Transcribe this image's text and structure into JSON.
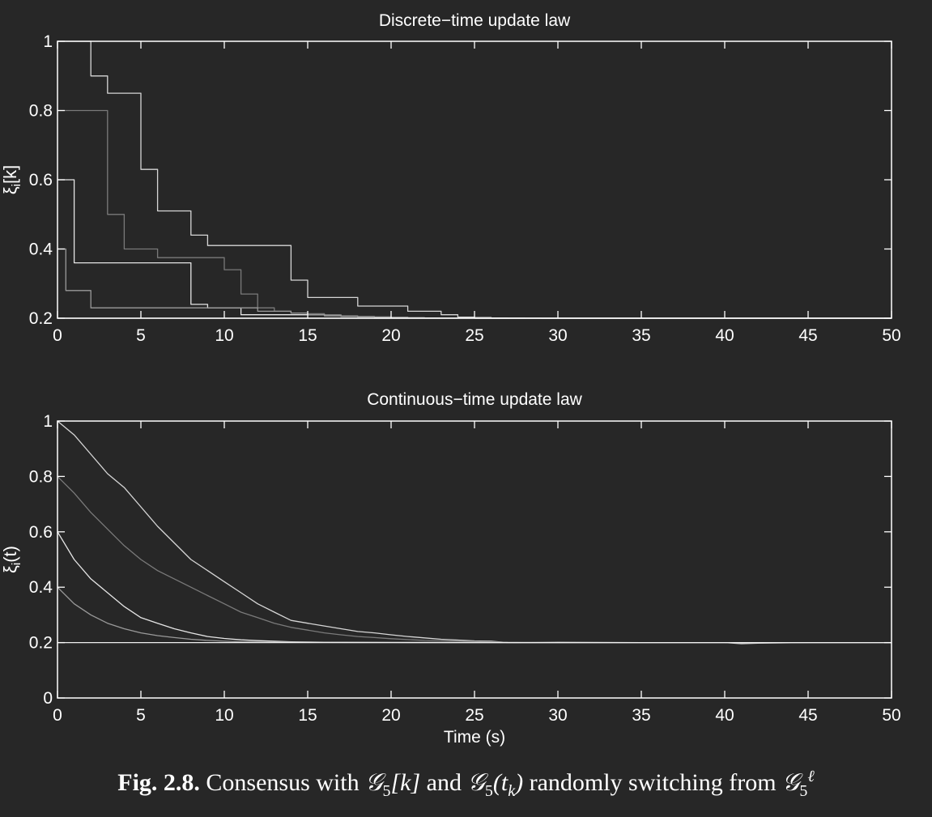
{
  "caption": {
    "label": "Fig. 2.8.",
    "text_1": " Consensus with ",
    "g": "𝒢",
    "sub5": "5",
    "k_bracket": "[k]",
    "text_and": " and ",
    "tk_paren": "(t",
    "tk_sub": "k",
    "tk_close": ")",
    "text_2": " randomly switching from ",
    "sup_ell": "ℓ"
  },
  "chart_data": [
    {
      "type": "line",
      "title": "Discrete−time update law",
      "xlabel": "",
      "ylabel": "ξi[k]",
      "xlim": [
        0,
        50
      ],
      "ylim": [
        0.2,
        1
      ],
      "xticks": [
        0,
        5,
        10,
        15,
        20,
        25,
        30,
        35,
        40,
        45,
        50
      ],
      "yticks": [
        0.2,
        0.4,
        0.6,
        0.8,
        1
      ],
      "ytick_labels": [
        "0.2",
        "0.4",
        "0.6",
        "0.8",
        "1"
      ],
      "grid": false,
      "step": true,
      "series": [
        {
          "color": "#d6d6d6",
          "x": [
            0,
            1,
            2,
            3,
            4,
            5,
            6,
            7,
            8,
            9,
            10,
            11,
            12,
            13,
            14,
            15,
            16,
            17,
            18,
            19,
            20,
            21,
            22,
            23,
            24,
            25,
            26,
            27,
            28,
            29,
            30,
            50
          ],
          "y": [
            1.0,
            1.0,
            0.9,
            0.85,
            0.85,
            0.63,
            0.51,
            0.51,
            0.44,
            0.41,
            0.41,
            0.41,
            0.41,
            0.41,
            0.31,
            0.26,
            0.26,
            0.26,
            0.235,
            0.235,
            0.235,
            0.22,
            0.22,
            0.21,
            0.203,
            0.202,
            0.201,
            0.2005,
            0.2002,
            0.2001,
            0.2,
            0.2
          ]
        },
        {
          "color": "#7a7a7a",
          "x": [
            0,
            1,
            2,
            3,
            4,
            5,
            6,
            7,
            8,
            9,
            10,
            11,
            12,
            13,
            14,
            15,
            16,
            17,
            18,
            19,
            20,
            21,
            22,
            23,
            24,
            25,
            26,
            50
          ],
          "y": [
            0.8,
            0.8,
            0.8,
            0.5,
            0.4,
            0.4,
            0.375,
            0.375,
            0.375,
            0.375,
            0.34,
            0.27,
            0.23,
            0.22,
            0.215,
            0.213,
            0.21,
            0.207,
            0.205,
            0.204,
            0.203,
            0.202,
            0.201,
            0.2005,
            0.2003,
            0.2002,
            0.2001,
            0.2
          ]
        },
        {
          "color": "#e6e6e6",
          "x": [
            0,
            0.5,
            1,
            2,
            3,
            4,
            5,
            6,
            7,
            8,
            9,
            10,
            11,
            12,
            13,
            14,
            15,
            16,
            17,
            18,
            19,
            20,
            21,
            22,
            23,
            24,
            25,
            50
          ],
          "y": [
            0.6,
            0.6,
            0.36,
            0.36,
            0.36,
            0.36,
            0.36,
            0.36,
            0.36,
            0.24,
            0.23,
            0.23,
            0.21,
            0.21,
            0.21,
            0.21,
            0.21,
            0.207,
            0.205,
            0.204,
            0.203,
            0.202,
            0.201,
            0.2005,
            0.2003,
            0.2002,
            0.2001,
            0.2
          ]
        },
        {
          "color": "#9a9a9a",
          "x": [
            0,
            0.5,
            1,
            2,
            3,
            4,
            5,
            6,
            7,
            8,
            9,
            10,
            11,
            12,
            13,
            14,
            15,
            16,
            17,
            18,
            19,
            20,
            21,
            22,
            23,
            24,
            25,
            50
          ],
          "y": [
            0.4,
            0.28,
            0.28,
            0.23,
            0.23,
            0.23,
            0.23,
            0.23,
            0.23,
            0.23,
            0.23,
            0.23,
            0.23,
            0.22,
            0.22,
            0.215,
            0.21,
            0.207,
            0.205,
            0.204,
            0.203,
            0.202,
            0.201,
            0.2005,
            0.2003,
            0.2002,
            0.2001,
            0.2
          ]
        },
        {
          "color": "#f0f0f0",
          "x": [
            0,
            50
          ],
          "y": [
            0.2,
            0.2
          ]
        }
      ]
    },
    {
      "type": "line",
      "title": "Continuous−time update law",
      "xlabel": "Time (s)",
      "ylabel": "ξi(t)",
      "xlim": [
        0,
        50
      ],
      "ylim": [
        0,
        1
      ],
      "xticks": [
        0,
        5,
        10,
        15,
        20,
        25,
        30,
        35,
        40,
        45,
        50
      ],
      "yticks": [
        0,
        0.2,
        0.4,
        0.6,
        0.8,
        1
      ],
      "ytick_labels": [
        "0",
        "0.2",
        "0.4",
        "0.6",
        "0.8",
        "1"
      ],
      "grid": false,
      "step": false,
      "series": [
        {
          "color": "#d6d6d6",
          "x": [
            0,
            1,
            2,
            3,
            4,
            5,
            6,
            7,
            8,
            9,
            10,
            11,
            12,
            13,
            14,
            15,
            16,
            17,
            18,
            19,
            20,
            21,
            22,
            23,
            24,
            25,
            26,
            27,
            28,
            30,
            35,
            40,
            41,
            42,
            45,
            50
          ],
          "y": [
            1.0,
            0.95,
            0.88,
            0.81,
            0.76,
            0.69,
            0.62,
            0.56,
            0.5,
            0.46,
            0.42,
            0.38,
            0.34,
            0.31,
            0.28,
            0.27,
            0.26,
            0.25,
            0.24,
            0.235,
            0.228,
            0.222,
            0.217,
            0.212,
            0.209,
            0.206,
            0.205,
            0.2,
            0.2,
            0.201,
            0.2,
            0.2,
            0.196,
            0.198,
            0.2,
            0.2
          ]
        },
        {
          "color": "#7a7a7a",
          "x": [
            0,
            1,
            2,
            3,
            4,
            5,
            6,
            7,
            8,
            9,
            10,
            11,
            12,
            13,
            14,
            15,
            16,
            17,
            18,
            19,
            20,
            22,
            24,
            26,
            27,
            30,
            50
          ],
          "y": [
            0.8,
            0.74,
            0.67,
            0.61,
            0.55,
            0.5,
            0.46,
            0.43,
            0.4,
            0.37,
            0.34,
            0.31,
            0.29,
            0.27,
            0.255,
            0.245,
            0.235,
            0.228,
            0.222,
            0.218,
            0.214,
            0.208,
            0.205,
            0.203,
            0.201,
            0.2,
            0.2
          ]
        },
        {
          "color": "#e6e6e6",
          "x": [
            0,
            1,
            2,
            3,
            4,
            5,
            6,
            7,
            8,
            9,
            10,
            11,
            12,
            13,
            14,
            15,
            16,
            18,
            20,
            25,
            30,
            50
          ],
          "y": [
            0.6,
            0.5,
            0.43,
            0.38,
            0.33,
            0.29,
            0.27,
            0.25,
            0.235,
            0.222,
            0.215,
            0.21,
            0.207,
            0.205,
            0.203,
            0.202,
            0.2015,
            0.201,
            0.2005,
            0.2002,
            0.2,
            0.2
          ]
        },
        {
          "color": "#9a9a9a",
          "x": [
            0,
            1,
            2,
            3,
            4,
            5,
            6,
            7,
            8,
            9,
            10,
            11,
            12,
            14,
            16,
            18,
            20,
            25,
            30,
            50
          ],
          "y": [
            0.4,
            0.34,
            0.3,
            0.27,
            0.25,
            0.235,
            0.225,
            0.218,
            0.212,
            0.208,
            0.205,
            0.203,
            0.202,
            0.201,
            0.2005,
            0.2003,
            0.2002,
            0.2001,
            0.2,
            0.2
          ]
        },
        {
          "color": "#f0f0f0",
          "x": [
            0,
            50
          ],
          "y": [
            0.2,
            0.2
          ]
        }
      ]
    }
  ]
}
